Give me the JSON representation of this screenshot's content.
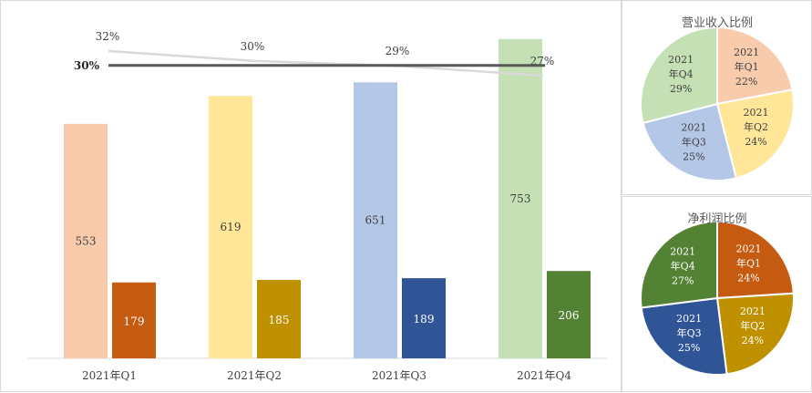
{
  "chart_data": [
    {
      "type": "bar",
      "categories": [
        "2021年Q1",
        "2021年Q2",
        "2021年Q3",
        "2021年Q4"
      ],
      "series": [
        {
          "values": [
            553,
            619,
            651,
            753
          ],
          "colors": [
            "#f8cbad",
            "#ffe699",
            "#b4c7e7",
            "#c5e0b4"
          ]
        },
        {
          "values": [
            179,
            185,
            189,
            206
          ],
          "colors": [
            "#c55a11",
            "#bf9000",
            "#2f5597",
            "#548235"
          ]
        }
      ],
      "line": {
        "values": [
          "32%",
          "30%",
          "29%",
          "27%"
        ],
        "numeric": [
          32,
          30,
          29,
          27
        ],
        "color": "#d9d9d9"
      },
      "reference": {
        "label": "30%",
        "value": 30,
        "color": "#595959"
      },
      "ylim": [
        0,
        800
      ]
    },
    {
      "type": "pie",
      "title": "营业收入比例",
      "labels": [
        "2021年Q1",
        "2021年Q2",
        "2021年Q3",
        "2021年Q4"
      ],
      "label_lines": [
        [
          "2021",
          "年Q1",
          "22%"
        ],
        [
          "2021",
          "年Q2",
          "24%"
        ],
        [
          "2021",
          "年Q3",
          "25%"
        ],
        [
          "2021",
          "年Q4",
          "29%"
        ]
      ],
      "values": [
        22,
        24,
        25,
        29
      ],
      "colors": [
        "#f8cbad",
        "#ffe699",
        "#b4c7e7",
        "#c5e0b4"
      ],
      "text_color": "#404040"
    },
    {
      "type": "pie",
      "title": "净利润比例",
      "labels": [
        "2021年Q1",
        "2021年Q2",
        "2021年Q3",
        "2021年Q4"
      ],
      "label_lines": [
        [
          "2021",
          "年Q1",
          "24%"
        ],
        [
          "2021",
          "年Q2",
          "24%"
        ],
        [
          "2021",
          "年Q3",
          "25%"
        ],
        [
          "2021",
          "年Q4",
          "27%"
        ]
      ],
      "values": [
        24,
        24,
        25,
        27
      ],
      "colors": [
        "#c55a11",
        "#bf9000",
        "#2f5597",
        "#548235"
      ],
      "text_color": "#ffffff"
    }
  ]
}
